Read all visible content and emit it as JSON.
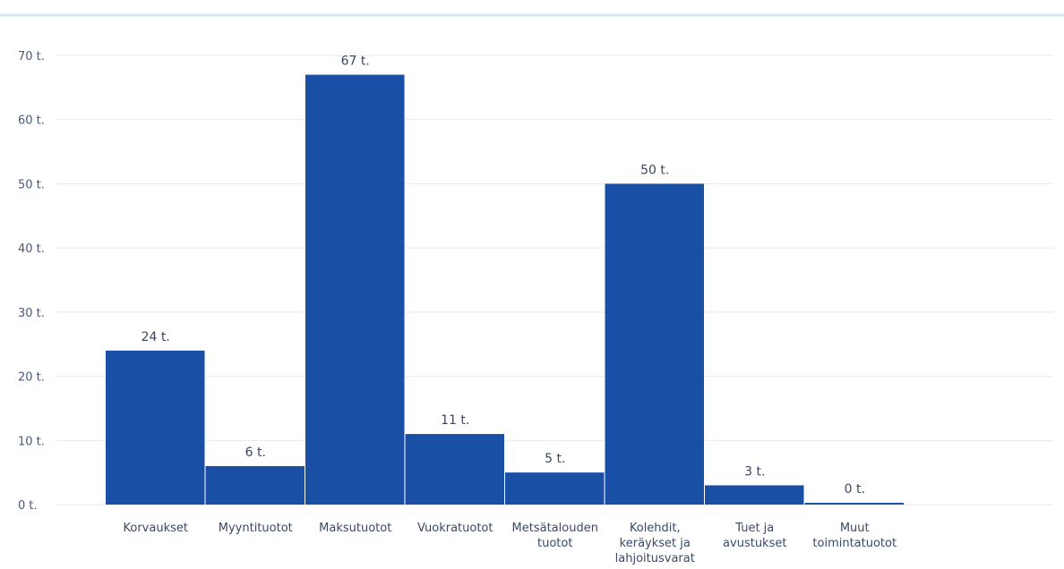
{
  "chart_data": {
    "type": "bar",
    "categories": [
      "Korvaukset",
      "Myyntituotot",
      "Maksutuotot",
      "Vuokratuotot",
      "Metsätalouden tuotot",
      "Kolehdit, keräykset ja lahjoitusvarat",
      "Tuet ja avustukset",
      "Muut toimintatuotot"
    ],
    "category_lines": [
      [
        "Korvaukset"
      ],
      [
        "Myyntituotot"
      ],
      [
        "Maksutuotot"
      ],
      [
        "Vuokratuotot"
      ],
      [
        "Metsätalouden",
        "tuotot"
      ],
      [
        "Kolehdit,",
        "keräykset ja",
        "lahjoitusvarat"
      ],
      [
        "Tuet ja",
        "avustukset"
      ],
      [
        "Muut",
        "toimintatuotot"
      ]
    ],
    "values": [
      24,
      6,
      67,
      11,
      5,
      50,
      3,
      0
    ],
    "data_labels": [
      "24 t.",
      "6 t.",
      "67 t.",
      "11 t.",
      "5 t.",
      "50 t.",
      "3 t.",
      "0 t."
    ],
    "ytick_values": [
      0,
      10,
      20,
      30,
      40,
      50,
      60,
      70
    ],
    "ytick_labels": [
      "0 t.",
      "10 t.",
      "20 t.",
      "30 t.",
      "40 t.",
      "50 t.",
      "60 t.",
      "70 t."
    ],
    "ylim": [
      0,
      70
    ],
    "title": "",
    "xlabel": "",
    "ylabel": "",
    "grid": true,
    "bar_color": "#1a4fa6"
  }
}
